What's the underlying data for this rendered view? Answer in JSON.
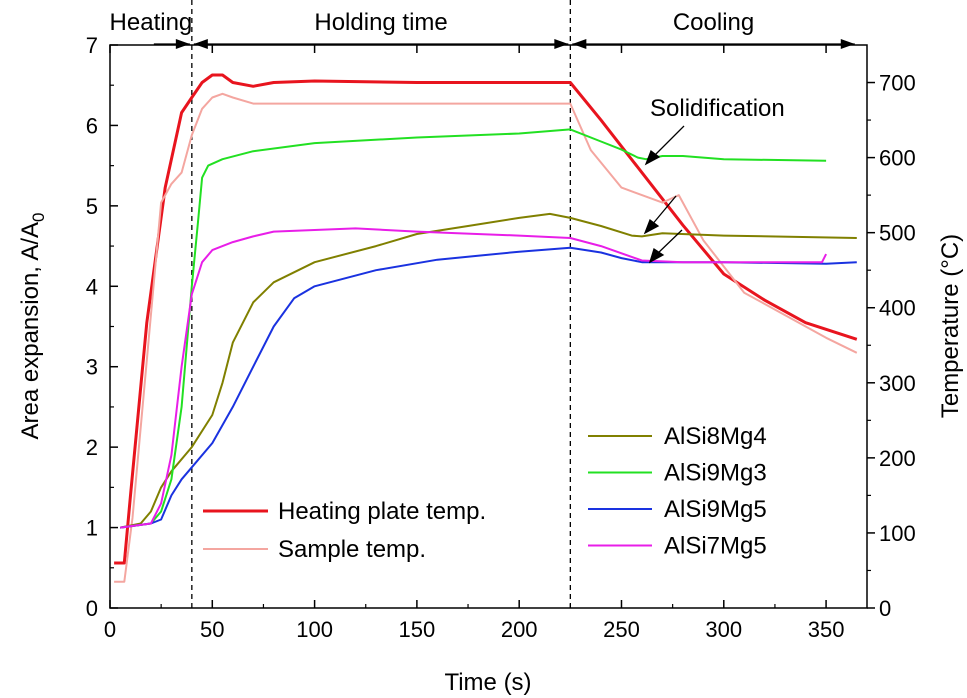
{
  "chart_data": {
    "type": "line",
    "xlabel": "Time (s)",
    "ylabel_left": "Area expansion, A/A",
    "ylabel_left_subscript": "0",
    "ylabel_right": "Temperature  (°C)",
    "xlim": [
      0,
      370
    ],
    "ylim_left": [
      0,
      7
    ],
    "ylim_right": [
      0,
      750
    ],
    "x_ticks": [
      0,
      50,
      100,
      150,
      200,
      250,
      300,
      350
    ],
    "y_left_ticks": [
      0,
      1,
      2,
      3,
      4,
      5,
      6,
      7
    ],
    "y_right_ticks": [
      0,
      100,
      200,
      300,
      400,
      500,
      600,
      700
    ],
    "grid": false,
    "phases": [
      {
        "label": "Heating",
        "start": 0,
        "end": 40
      },
      {
        "label": "Holding time",
        "start": 40,
        "end": 225
      },
      {
        "label": "Cooling",
        "start": 225,
        "end": 365
      }
    ],
    "phase_boundaries": [
      40,
      225
    ],
    "annotations": [
      {
        "text": "Solidification"
      }
    ],
    "series": [
      {
        "name": "Heating plate temp.",
        "axis": "right",
        "color": "#e8141e",
        "width": 3,
        "x": [
          2,
          7,
          10,
          18,
          27,
          35,
          40,
          45,
          50,
          55,
          60,
          70,
          80,
          100,
          150,
          200,
          225,
          240,
          260,
          280,
          300,
          320,
          340,
          365
        ],
        "y": [
          60,
          60,
          150,
          380,
          560,
          660,
          680,
          700,
          710,
          710,
          700,
          695,
          700,
          702,
          700,
          700,
          700,
          650,
          580,
          510,
          445,
          410,
          380,
          358
        ]
      },
      {
        "name": "Sample temp.",
        "axis": "right",
        "color": "#f4a6a0",
        "width": 2,
        "x": [
          2,
          7,
          11,
          18,
          25,
          30,
          35,
          40,
          45,
          50,
          55,
          60,
          70,
          80,
          100,
          150,
          200,
          225,
          235,
          250,
          270,
          278,
          290,
          310,
          330,
          350,
          365
        ],
        "y": [
          35,
          35,
          120,
          330,
          540,
          565,
          580,
          630,
          665,
          680,
          685,
          680,
          672,
          672,
          672,
          672,
          672,
          672,
          610,
          560,
          540,
          550,
          490,
          420,
          390,
          360,
          340
        ]
      },
      {
        "name": "AlSi8Mg4",
        "axis": "left",
        "color": "#808000",
        "width": 2,
        "x": [
          5,
          15,
          20,
          25,
          30,
          40,
          50,
          55,
          60,
          70,
          80,
          100,
          130,
          150,
          175,
          200,
          215,
          225,
          240,
          255,
          260,
          270,
          300,
          365
        ],
        "y": [
          1.0,
          1.05,
          1.2,
          1.5,
          1.7,
          2.0,
          2.4,
          2.8,
          3.3,
          3.8,
          4.05,
          4.3,
          4.5,
          4.65,
          4.75,
          4.85,
          4.9,
          4.85,
          4.75,
          4.63,
          4.62,
          4.66,
          4.63,
          4.6
        ]
      },
      {
        "name": "AlSi9Mg3",
        "axis": "left",
        "color": "#22e022",
        "width": 2,
        "x": [
          5,
          20,
          25,
          30,
          35,
          40,
          43,
          45,
          48,
          55,
          70,
          100,
          150,
          200,
          225,
          240,
          250,
          258,
          262,
          270,
          280,
          300,
          350
        ],
        "y": [
          1.0,
          1.05,
          1.2,
          1.6,
          2.5,
          4.0,
          4.8,
          5.35,
          5.5,
          5.58,
          5.68,
          5.78,
          5.85,
          5.9,
          5.95,
          5.8,
          5.7,
          5.6,
          5.58,
          5.62,
          5.62,
          5.58,
          5.56
        ]
      },
      {
        "name": "AlSi9Mg5",
        "axis": "left",
        "color": "#1a32e0",
        "width": 2,
        "x": [
          5,
          20,
          25,
          30,
          35,
          40,
          50,
          60,
          70,
          80,
          90,
          100,
          130,
          160,
          200,
          225,
          240,
          250,
          260,
          300,
          350,
          365
        ],
        "y": [
          1.0,
          1.05,
          1.1,
          1.4,
          1.6,
          1.75,
          2.05,
          2.5,
          3.0,
          3.5,
          3.85,
          4.0,
          4.2,
          4.33,
          4.43,
          4.48,
          4.42,
          4.35,
          4.3,
          4.3,
          4.28,
          4.3
        ]
      },
      {
        "name": "AlSi7Mg5",
        "axis": "left",
        "color": "#e81ee8",
        "width": 2,
        "x": [
          5,
          20,
          25,
          30,
          35,
          40,
          45,
          50,
          55,
          60,
          70,
          80,
          100,
          120,
          150,
          170,
          200,
          225,
          240,
          260,
          280,
          300,
          348,
          350
        ],
        "y": [
          1.0,
          1.05,
          1.3,
          1.9,
          3.0,
          3.9,
          4.3,
          4.45,
          4.5,
          4.55,
          4.62,
          4.68,
          4.7,
          4.72,
          4.68,
          4.66,
          4.63,
          4.6,
          4.5,
          4.32,
          4.3,
          4.3,
          4.3,
          4.4
        ]
      }
    ]
  }
}
